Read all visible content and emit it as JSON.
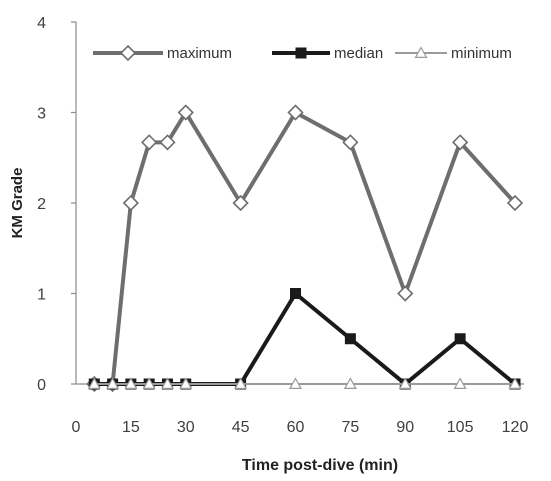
{
  "chart_data": {
    "type": "line",
    "xlabel": "Time post-dive (min)",
    "ylabel": "KM Grade",
    "x_ticks": [
      "0",
      "15",
      "30",
      "45",
      "60",
      "75",
      "90",
      "105",
      "120"
    ],
    "y_ticks": [
      "0",
      "1",
      "2",
      "3",
      "4"
    ],
    "xlim": [
      0,
      120
    ],
    "ylim": [
      0,
      4
    ],
    "grid": false,
    "legend_position": "top",
    "x": [
      5,
      10,
      15,
      20,
      25,
      30,
      45,
      60,
      75,
      90,
      105,
      120
    ],
    "series": [
      {
        "name": "maximum",
        "color": "#6e6e6e",
        "marker": "diamond",
        "values": [
          0,
          0,
          2,
          2.67,
          2.67,
          3,
          2,
          3,
          2.67,
          1,
          2.67,
          2
        ]
      },
      {
        "name": "median",
        "color": "#1a1a1a",
        "marker": "square",
        "values": [
          0,
          0,
          0,
          0,
          0,
          0,
          0,
          1,
          0.5,
          0,
          0.5,
          0
        ]
      },
      {
        "name": "minimum",
        "color": "#9a9a9a",
        "marker": "triangle",
        "values": [
          0,
          0,
          0,
          0,
          0,
          0,
          0,
          0,
          0,
          0,
          0,
          0
        ]
      }
    ]
  }
}
